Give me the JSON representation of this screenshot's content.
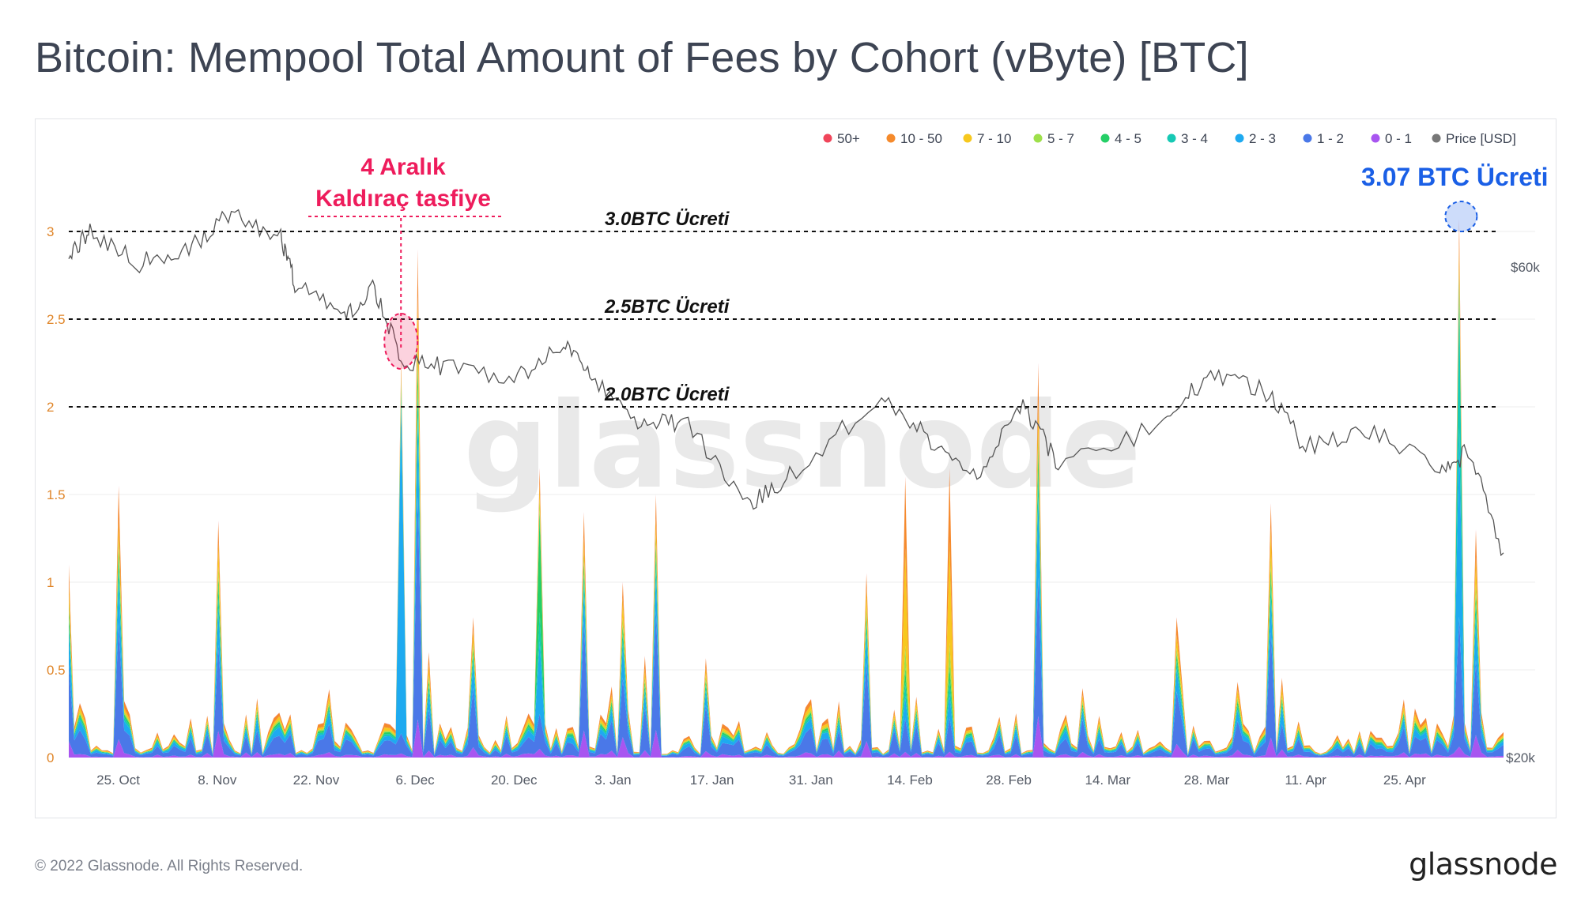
{
  "title": "Bitcoin: Mempool Total Amount of Fees by Cohort (vByte) [BTC]",
  "footer": {
    "copyright": "© 2022 Glassnode. All Rights Reserved.",
    "logo": "glassnode"
  },
  "watermark": "glassnode",
  "annotations": {
    "liquidation_line1": "4 Aralık",
    "liquidation_line2": "Kaldıraç tasfiye",
    "peak_label": "3.07 BTC Ücreti",
    "level_labels": [
      "3.0BTC Ücreti",
      "2.5BTC Ücreti",
      "2.0BTC Ücreti"
    ]
  },
  "chart_data": {
    "type": "area",
    "stacked": true,
    "title": "Bitcoin: Mempool Total Amount of Fees by Cohort (vByte) [BTC]",
    "x_start": "2021-10-18",
    "x_end": "2022-05-09",
    "x_ticks": [
      "25. Oct",
      "8. Nov",
      "22. Nov",
      "6. Dec",
      "20. Dec",
      "3. Jan",
      "17. Jan",
      "31. Jan",
      "14. Feb",
      "28. Feb",
      "14. Mar",
      "28. Mar",
      "11. Apr",
      "25. Apr"
    ],
    "y_left": {
      "range": [
        0,
        3.1
      ],
      "ticks": [
        "0",
        "0.5",
        "1",
        "1.5",
        "2",
        "2.5",
        "3"
      ]
    },
    "y_right": {
      "label": "Price [USD]",
      "ticks": [
        "$20k",
        "$60k"
      ],
      "scale": "log",
      "range": [
        20000,
        80000
      ]
    },
    "legend": {
      "placement": "top-right",
      "items": [
        {
          "name": "50+",
          "color": "#f0455a"
        },
        {
          "name": "10 - 50",
          "color": "#f58a2c"
        },
        {
          "name": "7 - 10",
          "color": "#f7c81e"
        },
        {
          "name": "5 - 7",
          "color": "#9ee04a"
        },
        {
          "name": "4 - 5",
          "color": "#25cf67"
        },
        {
          "name": "3 - 4",
          "color": "#16c9b4"
        },
        {
          "name": "2 - 3",
          "color": "#1eaaf0"
        },
        {
          "name": "1 - 2",
          "color": "#4a78e8"
        },
        {
          "name": "0 - 1",
          "color": "#a855f0"
        },
        {
          "name": "Price [USD]",
          "color": "#777777"
        }
      ]
    },
    "reference_lines": [
      {
        "value": 3.0,
        "label": "3.0BTC Ücreti"
      },
      {
        "value": 2.5,
        "label": "2.5BTC Ücreti"
      },
      {
        "value": 2.0,
        "label": "2.0BTC Ücreti"
      }
    ],
    "fee_peaks": [
      {
        "date": "2021-10-18",
        "total": 1.1
      },
      {
        "date": "2021-10-25",
        "total": 1.55
      },
      {
        "date": "2021-11-08",
        "total": 1.35
      },
      {
        "date": "2021-12-04",
        "total": 2.28
      },
      {
        "date": "2021-12-06",
        "total": 2.9
      },
      {
        "date": "2021-12-08",
        "total": 0.6
      },
      {
        "date": "2021-12-14",
        "total": 0.8
      },
      {
        "date": "2021-12-24",
        "total": 1.65
      },
      {
        "date": "2021-12-30",
        "total": 1.4
      },
      {
        "date": "2022-01-04",
        "total": 1.0
      },
      {
        "date": "2022-01-09",
        "total": 1.5
      },
      {
        "date": "2022-02-08",
        "total": 1.05
      },
      {
        "date": "2022-02-13",
        "total": 1.6
      },
      {
        "date": "2022-02-20",
        "total": 1.65
      },
      {
        "date": "2022-03-04",
        "total": 2.25
      },
      {
        "date": "2022-03-24",
        "total": 0.8
      },
      {
        "date": "2022-04-06",
        "total": 1.45
      },
      {
        "date": "2022-05-03",
        "total": 3.07
      },
      {
        "date": "2022-05-05",
        "total": 1.3
      }
    ],
    "price_series_usd": [
      {
        "date": "2021-10-18",
        "price": 61500
      },
      {
        "date": "2021-10-21",
        "price": 65000
      },
      {
        "date": "2021-10-28",
        "price": 60500
      },
      {
        "date": "2021-11-04",
        "price": 62500
      },
      {
        "date": "2021-11-10",
        "price": 68000
      },
      {
        "date": "2021-11-17",
        "price": 64000
      },
      {
        "date": "2021-11-19",
        "price": 57500
      },
      {
        "date": "2021-11-26",
        "price": 53500
      },
      {
        "date": "2021-11-30",
        "price": 57500
      },
      {
        "date": "2021-12-04",
        "price": 48500
      },
      {
        "date": "2021-12-10",
        "price": 48000
      },
      {
        "date": "2021-12-20",
        "price": 46500
      },
      {
        "date": "2021-12-27",
        "price": 50500
      },
      {
        "date": "2021-12-31",
        "price": 47000
      },
      {
        "date": "2022-01-07",
        "price": 42000
      },
      {
        "date": "2022-01-13",
        "price": 42500
      },
      {
        "date": "2022-01-22",
        "price": 35000
      },
      {
        "date": "2022-01-28",
        "price": 37500
      },
      {
        "date": "2022-02-10",
        "price": 44500
      },
      {
        "date": "2022-02-17",
        "price": 40500
      },
      {
        "date": "2022-02-24",
        "price": 37500
      },
      {
        "date": "2022-03-02",
        "price": 44000
      },
      {
        "date": "2022-03-07",
        "price": 38500
      },
      {
        "date": "2022-03-22",
        "price": 42000
      },
      {
        "date": "2022-03-28",
        "price": 47000
      },
      {
        "date": "2022-04-05",
        "price": 45500
      },
      {
        "date": "2022-04-11",
        "price": 40000
      },
      {
        "date": "2022-04-20",
        "price": 41500
      },
      {
        "date": "2022-04-30",
        "price": 38000
      },
      {
        "date": "2022-05-04",
        "price": 39500
      },
      {
        "date": "2022-05-09",
        "price": 31500
      }
    ]
  }
}
